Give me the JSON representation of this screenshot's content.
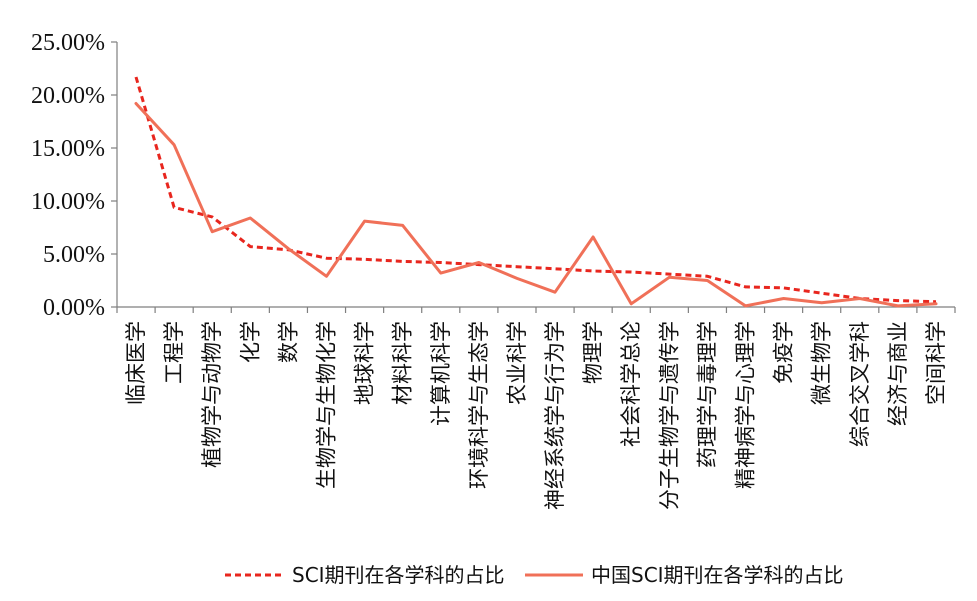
{
  "chart_data": {
    "type": "line",
    "categories": [
      "临床医学",
      "工程学",
      "植物学与动物学",
      "化学",
      "数学",
      "生物学与生物化学",
      "地球科学",
      "材料科学",
      "计算机科学",
      "环境科学与生态学",
      "农业科学",
      "神经系统学与行为学",
      "物理学",
      "社会科学总论",
      "分子生物学与遗传学",
      "药理学与毒理学",
      "精神病学与心理学",
      "免疫学",
      "微生物学",
      "综合交叉学科",
      "经济与商业",
      "空间科学"
    ],
    "series": [
      {
        "name": "SCI期刊在各学科的占比",
        "style": "dashed",
        "color": "#e8261e",
        "values": [
          21.7,
          9.4,
          8.5,
          5.7,
          5.4,
          4.6,
          4.5,
          4.3,
          4.2,
          4.0,
          3.8,
          3.6,
          3.4,
          3.3,
          3.1,
          2.9,
          1.9,
          1.8,
          1.3,
          0.8,
          0.6,
          0.5
        ]
      },
      {
        "name": "中国SCI期刊在各学科的占比",
        "style": "solid",
        "color": "#f07058",
        "values": [
          19.2,
          15.3,
          7.1,
          8.4,
          5.5,
          2.9,
          8.1,
          7.7,
          3.2,
          4.2,
          2.7,
          1.4,
          6.6,
          0.3,
          2.8,
          2.5,
          0.1,
          0.8,
          0.4,
          0.8,
          0.1,
          0.3
        ]
      }
    ],
    "y_ticks": [
      "0.00%",
      "5.00%",
      "10.00%",
      "15.00%",
      "20.00%",
      "25.00%"
    ],
    "ylim": [
      0,
      25
    ],
    "grid": false,
    "legend_position": "bottom"
  }
}
